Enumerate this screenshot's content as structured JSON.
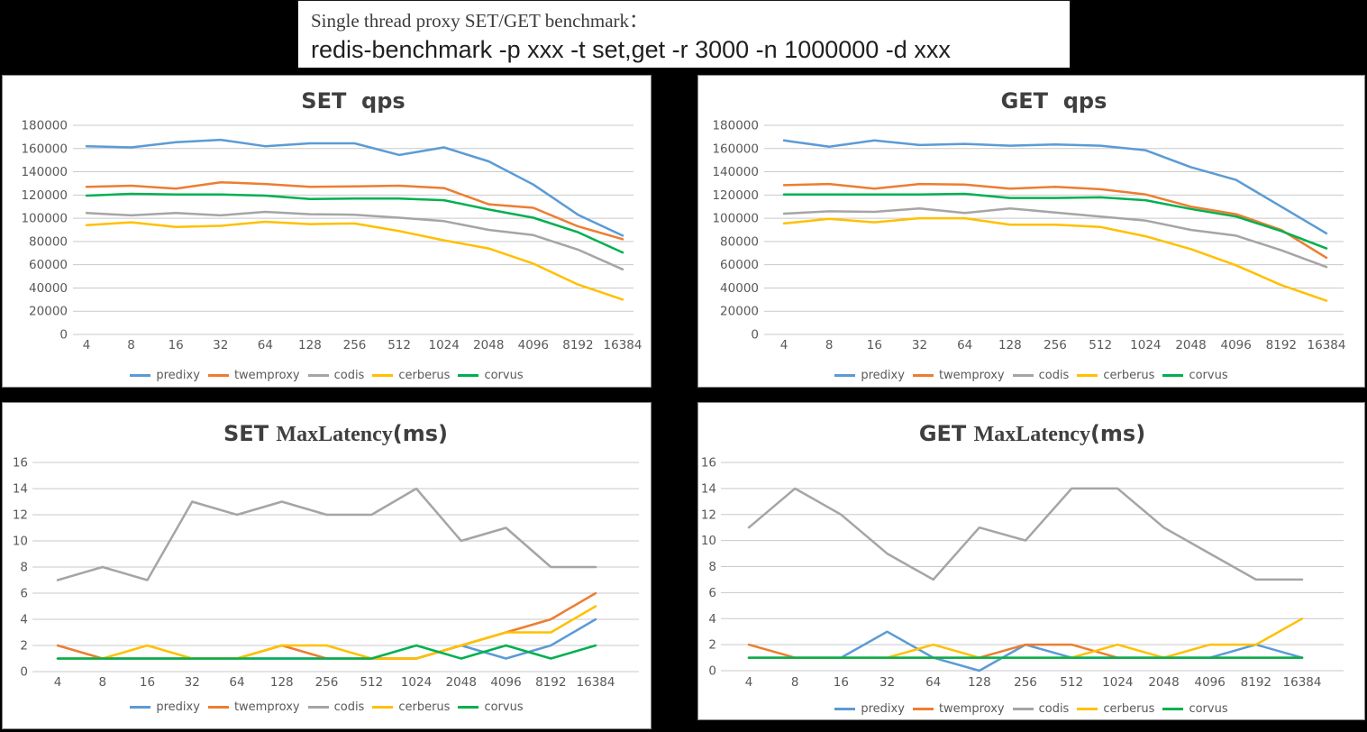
{
  "header": {
    "line1": "Single thread proxy SET/GET benchmark：",
    "line2": "redis-benchmark -p xxx -t set,get -r 3000 -n 1000000 -d xxx"
  },
  "palette": {
    "predixy": "#5B9BD5",
    "twemproxy": "#ED7D31",
    "codis": "#A5A5A5",
    "cerberus": "#FFC000",
    "corvus": "#00B050",
    "grid": "#C9C9C9",
    "axis_text": "#595959",
    "title_text": "#3F3F3F"
  },
  "chart_data": [
    {
      "type": "line",
      "title_parts": [
        {
          "text": "SET  qps",
          "font": "sans"
        }
      ],
      "categories": [
        "4",
        "8",
        "16",
        "32",
        "64",
        "128",
        "256",
        "512",
        "1024",
        "2048",
        "4096",
        "8192",
        "16384"
      ],
      "ylim": [
        0,
        180000
      ],
      "ystep": 20000,
      "grid": true,
      "legend_position": "bottom",
      "series": [
        {
          "name": "predixy",
          "color": "#5B9BD5",
          "values": [
            162000,
            161000,
            165500,
            167500,
            162000,
            164500,
            164500,
            154500,
            161000,
            149000,
            129000,
            103000,
            85000
          ]
        },
        {
          "name": "twemproxy",
          "color": "#ED7D31",
          "values": [
            127000,
            128000,
            125500,
            131000,
            129500,
            127000,
            127500,
            128000,
            126000,
            112000,
            109000,
            93000,
            82000
          ]
        },
        {
          "name": "codis",
          "color": "#A5A5A5",
          "values": [
            104500,
            102500,
            104500,
            102500,
            105500,
            103500,
            103000,
            100500,
            97500,
            90000,
            85500,
            73000,
            56000
          ]
        },
        {
          "name": "cerberus",
          "color": "#FFC000",
          "values": [
            94000,
            96500,
            92500,
            93500,
            97000,
            95000,
            95500,
            89000,
            81000,
            74000,
            61000,
            43000,
            30000
          ]
        },
        {
          "name": "corvus",
          "color": "#00B050",
          "values": [
            119500,
            121000,
            120500,
            120500,
            119500,
            116500,
            117000,
            117000,
            115500,
            107500,
            100500,
            88000,
            70500
          ]
        }
      ]
    },
    {
      "type": "line",
      "title_parts": [
        {
          "text": "GET  qps",
          "font": "sans"
        }
      ],
      "categories": [
        "4",
        "8",
        "16",
        "32",
        "64",
        "128",
        "256",
        "512",
        "1024",
        "2048",
        "4096",
        "8192",
        "16384"
      ],
      "ylim": [
        0,
        180000
      ],
      "ystep": 20000,
      "grid": true,
      "legend_position": "bottom",
      "series": [
        {
          "name": "predixy",
          "color": "#5B9BD5",
          "values": [
            167000,
            161500,
            167000,
            163000,
            164000,
            162500,
            163500,
            162500,
            158500,
            144000,
            133000,
            110000,
            87000
          ]
        },
        {
          "name": "twemproxy",
          "color": "#ED7D31",
          "values": [
            128500,
            129500,
            125500,
            129500,
            129000,
            125500,
            127000,
            125000,
            120500,
            110000,
            103500,
            90000,
            66000
          ]
        },
        {
          "name": "codis",
          "color": "#A5A5A5",
          "values": [
            104000,
            106000,
            105500,
            108500,
            104500,
            108500,
            105000,
            101500,
            98000,
            90000,
            85000,
            72500,
            58000
          ]
        },
        {
          "name": "cerberus",
          "color": "#FFC000",
          "values": [
            95500,
            99500,
            96500,
            100000,
            100000,
            94500,
            94500,
            92500,
            84500,
            73500,
            59500,
            42500,
            29000
          ]
        },
        {
          "name": "corvus",
          "color": "#00B050",
          "values": [
            120500,
            120500,
            120500,
            120500,
            121000,
            117500,
            117500,
            118000,
            115500,
            108000,
            101500,
            89000,
            74000
          ]
        }
      ]
    },
    {
      "type": "line",
      "title_parts": [
        {
          "text": "SET ",
          "font": "sans"
        },
        {
          "text": "MaxLatency",
          "font": "serif"
        },
        {
          "text": "(ms)",
          "font": "sans"
        }
      ],
      "categories": [
        "4",
        "8",
        "16",
        "32",
        "64",
        "128",
        "256",
        "512",
        "1024",
        "2048",
        "4096",
        "8192",
        "16384"
      ],
      "ylim": [
        0,
        16
      ],
      "ystep": 2,
      "grid": true,
      "legend_position": "bottom",
      "series": [
        {
          "name": "predixy",
          "color": "#5B9BD5",
          "values": [
            1,
            1,
            1,
            1,
            1,
            1,
            1,
            1,
            1,
            2,
            1,
            2,
            4
          ]
        },
        {
          "name": "twemproxy",
          "color": "#ED7D31",
          "values": [
            2,
            1,
            1,
            1,
            1,
            2,
            1,
            1,
            1,
            2,
            3,
            4,
            6
          ]
        },
        {
          "name": "codis",
          "color": "#A5A5A5",
          "values": [
            7,
            8,
            7,
            13,
            12,
            13,
            12,
            12,
            14,
            10,
            11,
            8,
            8
          ]
        },
        {
          "name": "cerberus",
          "color": "#FFC000",
          "values": [
            1,
            1,
            2,
            1,
            1,
            2,
            2,
            1,
            1,
            2,
            3,
            3,
            5
          ]
        },
        {
          "name": "corvus",
          "color": "#00B050",
          "values": [
            1,
            1,
            1,
            1,
            1,
            1,
            1,
            1,
            2,
            1,
            2,
            1,
            2
          ]
        }
      ]
    },
    {
      "type": "line",
      "title_parts": [
        {
          "text": "GET ",
          "font": "sans"
        },
        {
          "text": "MaxLatency",
          "font": "serif"
        },
        {
          "text": "(ms)",
          "font": "sans"
        }
      ],
      "categories": [
        "4",
        "8",
        "16",
        "32",
        "64",
        "128",
        "256",
        "512",
        "1024",
        "2048",
        "4096",
        "8192",
        "16384"
      ],
      "ylim": [
        0,
        16
      ],
      "ystep": 2,
      "grid": true,
      "legend_position": "bottom",
      "series": [
        {
          "name": "predixy",
          "color": "#5B9BD5",
          "values": [
            1,
            1,
            1,
            3,
            1,
            0,
            2,
            1,
            1,
            1,
            1,
            2,
            1
          ]
        },
        {
          "name": "twemproxy",
          "color": "#ED7D31",
          "values": [
            2,
            1,
            1,
            1,
            1,
            1,
            2,
            2,
            1,
            1,
            1,
            1,
            1
          ]
        },
        {
          "name": "codis",
          "color": "#A5A5A5",
          "values": [
            11,
            14,
            12,
            9,
            7,
            11,
            10,
            14,
            14,
            11,
            9,
            7,
            7
          ]
        },
        {
          "name": "cerberus",
          "color": "#FFC000",
          "values": [
            1,
            1,
            1,
            1,
            2,
            1,
            1,
            1,
            2,
            1,
            2,
            2,
            4
          ]
        },
        {
          "name": "corvus",
          "color": "#00B050",
          "values": [
            1,
            1,
            1,
            1,
            1,
            1,
            1,
            1,
            1,
            1,
            1,
            1,
            1
          ]
        }
      ]
    }
  ]
}
